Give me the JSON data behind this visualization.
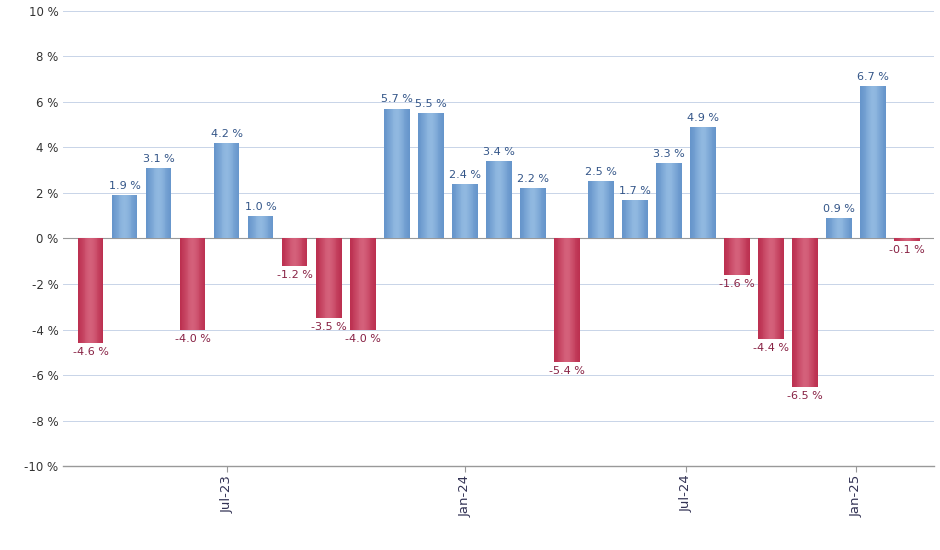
{
  "bars": [
    {
      "x": 0,
      "value": -4.6,
      "color_base": "#b8294a",
      "color_light": "#d4607a"
    },
    {
      "x": 1,
      "value": 1.9,
      "color_base": "#6090c8",
      "color_light": "#90b8e0"
    },
    {
      "x": 2,
      "value": 3.1,
      "color_base": "#6090c8",
      "color_light": "#90b8e0"
    },
    {
      "x": 3,
      "value": -4.0,
      "color_base": "#b8294a",
      "color_light": "#d4607a"
    },
    {
      "x": 4,
      "value": 4.2,
      "color_base": "#6090c8",
      "color_light": "#90b8e0"
    },
    {
      "x": 5,
      "value": 1.0,
      "color_base": "#6090c8",
      "color_light": "#90b8e0"
    },
    {
      "x": 6,
      "value": -1.2,
      "color_base": "#b8294a",
      "color_light": "#d4607a"
    },
    {
      "x": 7,
      "value": -3.5,
      "color_base": "#b8294a",
      "color_light": "#d4607a"
    },
    {
      "x": 8,
      "value": -4.0,
      "color_base": "#b8294a",
      "color_light": "#d4607a"
    },
    {
      "x": 9,
      "value": 5.7,
      "color_base": "#6090c8",
      "color_light": "#90b8e0"
    },
    {
      "x": 10,
      "value": 5.5,
      "color_base": "#6090c8",
      "color_light": "#90b8e0"
    },
    {
      "x": 11,
      "value": 2.4,
      "color_base": "#6090c8",
      "color_light": "#90b8e0"
    },
    {
      "x": 12,
      "value": 3.4,
      "color_base": "#6090c8",
      "color_light": "#90b8e0"
    },
    {
      "x": 13,
      "value": 2.2,
      "color_base": "#6090c8",
      "color_light": "#90b8e0"
    },
    {
      "x": 14,
      "value": -5.4,
      "color_base": "#b8294a",
      "color_light": "#d4607a"
    },
    {
      "x": 15,
      "value": 2.5,
      "color_base": "#6090c8",
      "color_light": "#90b8e0"
    },
    {
      "x": 16,
      "value": 1.7,
      "color_base": "#6090c8",
      "color_light": "#90b8e0"
    },
    {
      "x": 17,
      "value": 3.3,
      "color_base": "#6090c8",
      "color_light": "#90b8e0"
    },
    {
      "x": 18,
      "value": 4.9,
      "color_base": "#6090c8",
      "color_light": "#90b8e0"
    },
    {
      "x": 19,
      "value": -1.6,
      "color_base": "#b8294a",
      "color_light": "#d4607a"
    },
    {
      "x": 20,
      "value": -4.4,
      "color_base": "#b8294a",
      "color_light": "#d4607a"
    },
    {
      "x": 21,
      "value": -6.5,
      "color_base": "#b8294a",
      "color_light": "#d4607a"
    },
    {
      "x": 22,
      "value": 0.9,
      "color_base": "#6090c8",
      "color_light": "#90b8e0"
    },
    {
      "x": 23,
      "value": 6.7,
      "color_base": "#6090c8",
      "color_light": "#90b8e0"
    },
    {
      "x": 24,
      "value": -0.1,
      "color_base": "#b8294a",
      "color_light": "#d4607a"
    }
  ],
  "xtick_positions": [
    4.0,
    11.0,
    17.5,
    22.5
  ],
  "xtick_labels": [
    "Jul-23",
    "Jan-24",
    "Jul-24",
    "Jan-25"
  ],
  "ylim": [
    -10,
    10
  ],
  "yticks": [
    -10,
    -8,
    -6,
    -4,
    -2,
    0,
    2,
    4,
    6,
    8,
    10
  ],
  "ytick_labels": [
    "-10 %",
    "-8 %",
    "-6 %",
    "-4 %",
    "-2 %",
    "0 %",
    "2 %",
    "4 %",
    "6 %",
    "8 %",
    "10 %"
  ],
  "bar_width": 0.75,
  "background_color": "#ffffff",
  "grid_color": "#c8d4e8",
  "label_fontsize": 8.0,
  "label_color_pos": "#335588",
  "label_color_neg": "#882244"
}
